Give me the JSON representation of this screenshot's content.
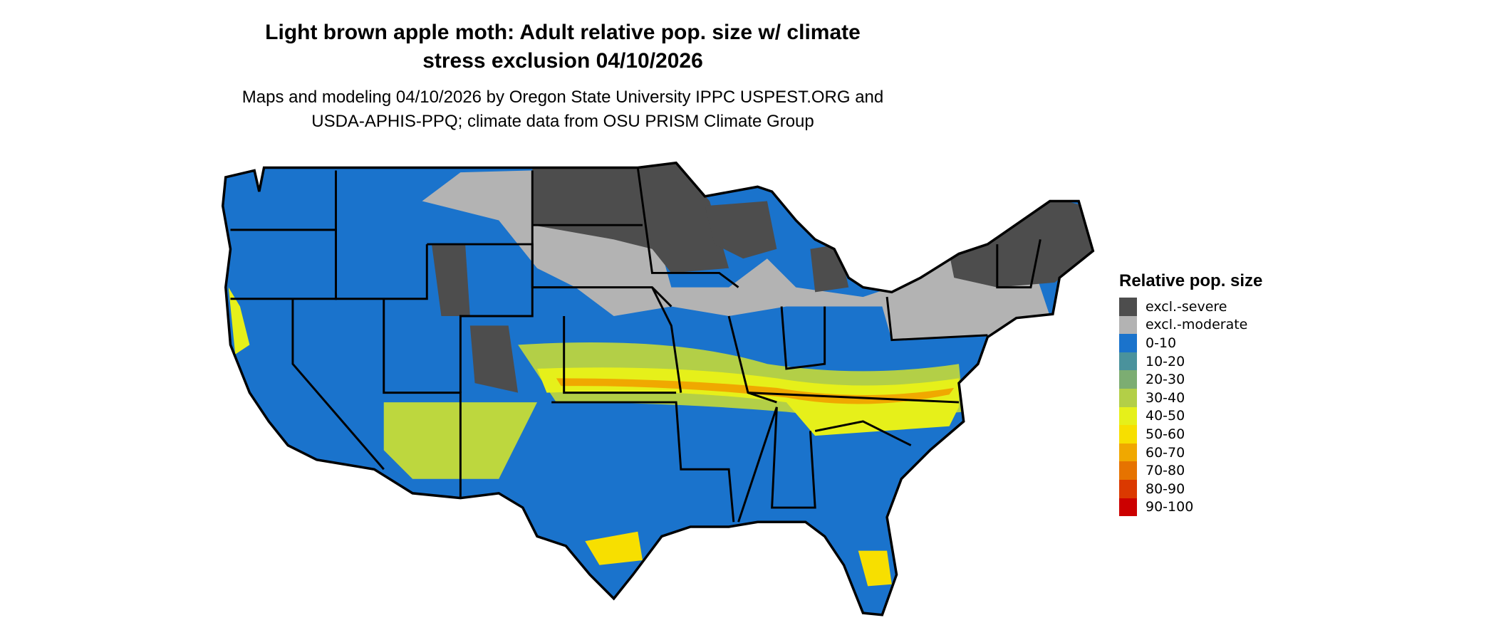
{
  "title": {
    "line1": "Light brown apple moth: Adult relative pop. size w/ climate",
    "line2": "stress exclusion 04/10/2026"
  },
  "subtitle": {
    "line1": "Maps and modeling 04/10/2026 by Oregon State University IPPC USPEST.ORG and",
    "line2": "USDA-APHIS-PPQ; climate data from OSU PRISM Climate Group"
  },
  "legend": {
    "title": "Relative pop. size",
    "items": [
      {
        "label": "excl.-severe",
        "color": "#4d4d4d"
      },
      {
        "label": "excl.-moderate",
        "color": "#b3b3b3"
      },
      {
        "label": "0-10",
        "color": "#1a73cc"
      },
      {
        "label": "10-20",
        "color": "#4a929c"
      },
      {
        "label": "20-30",
        "color": "#7cad72"
      },
      {
        "label": "30-40",
        "color": "#b3cf47"
      },
      {
        "label": "40-50",
        "color": "#e6f01a"
      },
      {
        "label": "50-60",
        "color": "#f7df00"
      },
      {
        "label": "60-70",
        "color": "#f0a800"
      },
      {
        "label": "70-80",
        "color": "#e67300"
      },
      {
        "label": "80-90",
        "color": "#db3900"
      },
      {
        "label": "90-100",
        "color": "#cc0000"
      }
    ]
  }
}
